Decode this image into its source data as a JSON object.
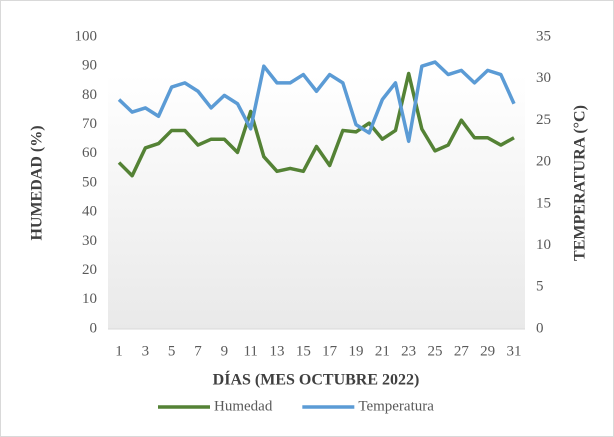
{
  "chart_data": {
    "type": "line",
    "xlabel": "DÍAS (MES OCTUBRE 2022)",
    "ylabel": "HUMEDAD (%)",
    "y2label": "TEMPERATURA (°C)",
    "categories": [
      1,
      null,
      3,
      null,
      5,
      null,
      7,
      null,
      9,
      null,
      11,
      null,
      13,
      null,
      15,
      null,
      17,
      null,
      19,
      null,
      21,
      null,
      23,
      null,
      25,
      null,
      27,
      null,
      29,
      null,
      31
    ],
    "series": [
      {
        "name": "Humedad",
        "color": "#548235",
        "axis": "y",
        "values": [
          57,
          52.5,
          62,
          63.5,
          68,
          68,
          63,
          65,
          65,
          60.5,
          74.5,
          59,
          54,
          55,
          54,
          62.5,
          56,
          68,
          67.5,
          70.5,
          65,
          68,
          87.5,
          68.5,
          61,
          63,
          71.5,
          65.5,
          65.5,
          63,
          65.5
        ]
      },
      {
        "name": "Temperatura",
        "color": "#5b9bd5",
        "axis": "y2",
        "values": [
          27.5,
          26,
          26.5,
          25.5,
          29,
          29.5,
          28.5,
          26.5,
          28,
          27,
          24,
          31.5,
          29.5,
          29.5,
          30.5,
          28.5,
          30.5,
          29.5,
          24.5,
          23.5,
          27.5,
          29.5,
          22.5,
          31.5,
          32,
          30.5,
          31,
          29.5,
          31,
          30.5,
          27
        ]
      }
    ],
    "ylim": [
      0,
      100
    ],
    "yticks": [
      0,
      10,
      20,
      30,
      40,
      50,
      60,
      70,
      80,
      90,
      100
    ],
    "y2lim": [
      0,
      35
    ],
    "y2ticks": [
      0,
      5,
      10,
      15,
      20,
      25,
      30,
      35
    ],
    "legend": "bottom"
  }
}
